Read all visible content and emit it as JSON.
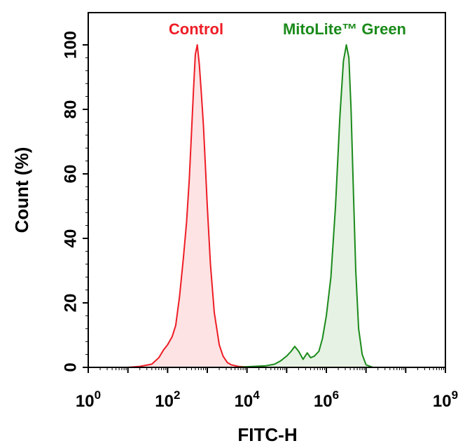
{
  "chart_data": {
    "type": "area",
    "xlabel": "FITC-H",
    "ylabel": "Count  (%)",
    "x_scale": "log10",
    "xlim": [
      1,
      1000000000
    ],
    "ylim": [
      0,
      110
    ],
    "x_ticks": [
      {
        "value": 1,
        "base": "10",
        "exp": "0"
      },
      {
        "value": 100,
        "base": "10",
        "exp": "2"
      },
      {
        "value": 10000,
        "base": "10",
        "exp": "4"
      },
      {
        "value": 1000000,
        "base": "10",
        "exp": "6"
      },
      {
        "value": 1000000000,
        "base": "10",
        "exp": "9"
      }
    ],
    "y_ticks": [
      {
        "value": 0,
        "label": "0"
      },
      {
        "value": 20,
        "label": "20"
      },
      {
        "value": 40,
        "label": "40"
      },
      {
        "value": 60,
        "label": "60"
      },
      {
        "value": 80,
        "label": "80"
      },
      {
        "value": 100,
        "label": "100"
      }
    ],
    "grid": false,
    "series": [
      {
        "name": "Control",
        "color": "#ee1c25",
        "fill": "#fde3e3",
        "x": [
          10,
          20,
          40,
          60,
          80,
          100,
          130,
          160,
          200,
          250,
          300,
          350,
          400,
          450,
          500,
          560,
          630,
          700,
          800,
          900,
          1000,
          1200,
          1500,
          2000,
          2500,
          3200,
          4000,
          6000,
          10000,
          20000
        ],
        "y": [
          0,
          0.3,
          1,
          3,
          5.5,
          7,
          9.5,
          13,
          22,
          34,
          45,
          58,
          73,
          86,
          97,
          100,
          94,
          86,
          75,
          62,
          50,
          32,
          17,
          7,
          3.5,
          1.5,
          0.8,
          0.3,
          0.1,
          0
        ]
      },
      {
        "name": "MitoLite™ Green",
        "color": "#1a8a1a",
        "fill": "#e6f2e3",
        "x": [
          1000,
          5000,
          10000,
          30000,
          50000,
          70000,
          100000,
          130000,
          160000,
          200000,
          260000,
          330000,
          400000,
          500000,
          650000,
          800000,
          1000000,
          1300000,
          1700000,
          2200000,
          2700000,
          3200000,
          3700000,
          4200000,
          4800000,
          5500000,
          6500000,
          8000000,
          10000000,
          15000000
        ],
        "y": [
          0,
          0,
          0.2,
          0.5,
          1,
          2,
          3.5,
          5,
          6.5,
          5,
          2.5,
          4.5,
          3,
          3.5,
          5,
          9,
          16,
          28,
          50,
          78,
          95,
          100,
          96,
          80,
          55,
          30,
          12,
          4,
          0.8,
          0
        ]
      }
    ]
  }
}
